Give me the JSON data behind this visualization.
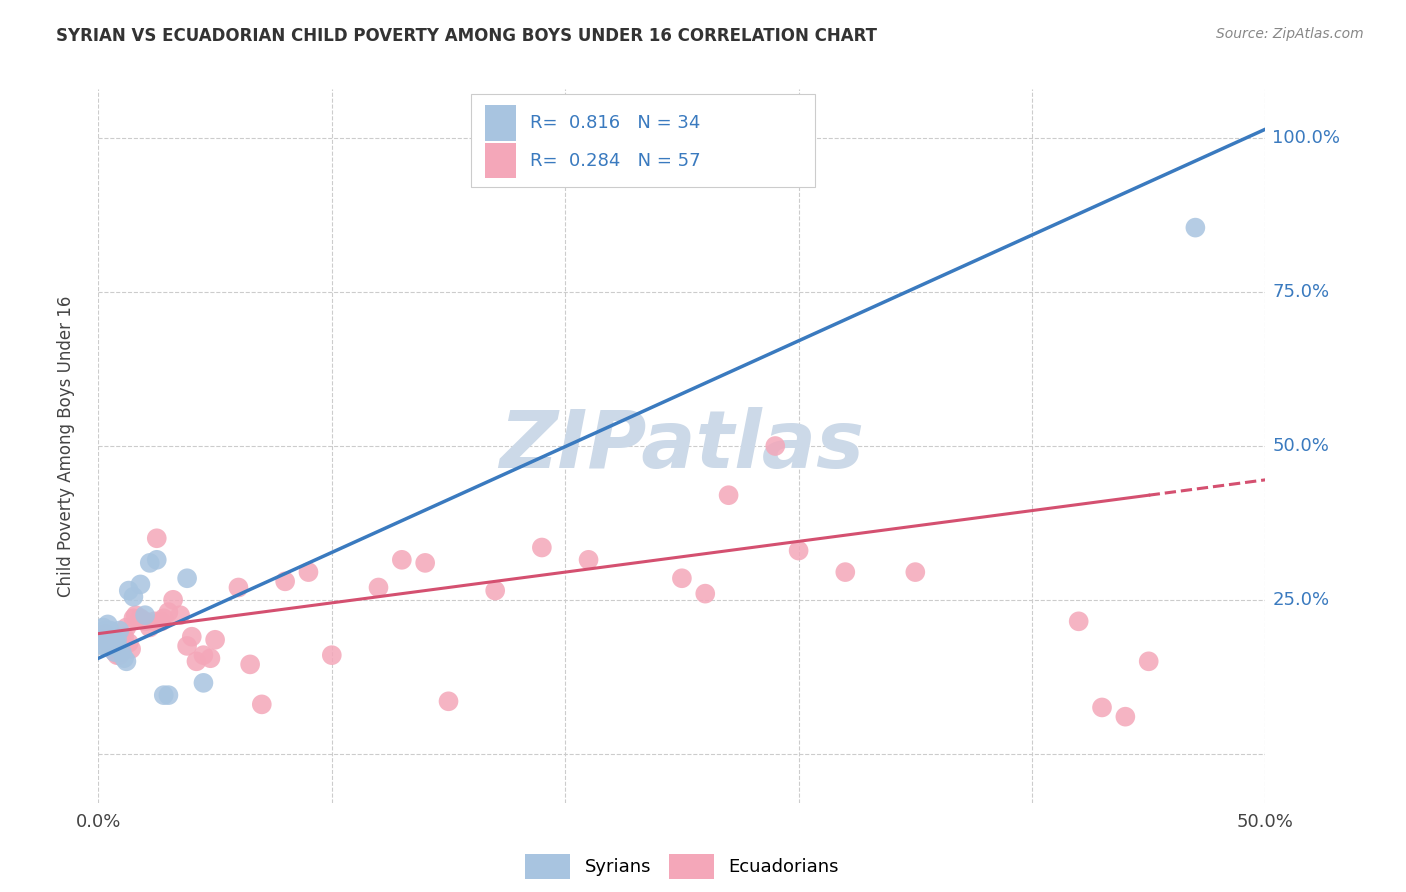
{
  "title": "SYRIAN VS ECUADORIAN CHILD POVERTY AMONG BOYS UNDER 16 CORRELATION CHART",
  "source": "Source: ZipAtlas.com",
  "ylabel": "Child Poverty Among Boys Under 16",
  "xlim": [
    0.0,
    0.5
  ],
  "ylim": [
    -0.08,
    1.08
  ],
  "yticks": [
    0.0,
    0.25,
    0.5,
    0.75,
    1.0
  ],
  "ytick_labels": [
    "",
    "25.0%",
    "50.0%",
    "75.0%",
    "100.0%"
  ],
  "xticks": [
    0.0,
    0.1,
    0.2,
    0.3,
    0.4,
    0.5
  ],
  "xtick_labels": [
    "0.0%",
    "",
    "",
    "",
    "",
    "50.0%"
  ],
  "syrians_R": 0.816,
  "syrians_N": 34,
  "ecuadorians_R": 0.284,
  "ecuadorians_N": 57,
  "syrians_color": "#a8c4e0",
  "ecuadorians_color": "#f4a7b9",
  "trendline_syrians_color": "#3a7abf",
  "trendline_ecuadorians_color": "#d45070",
  "watermark": "ZIPatlas",
  "watermark_color": "#ccd9e8",
  "background_color": "#ffffff",
  "grid_color": "#cccccc",
  "title_color": "#333333",
  "source_color": "#888888",
  "tick_label_color": "#3a7abf",
  "syrians_x": [
    0.001,
    0.001,
    0.002,
    0.002,
    0.002,
    0.003,
    0.003,
    0.003,
    0.004,
    0.004,
    0.005,
    0.005,
    0.005,
    0.006,
    0.006,
    0.007,
    0.007,
    0.008,
    0.008,
    0.009,
    0.01,
    0.011,
    0.012,
    0.013,
    0.015,
    0.018,
    0.02,
    0.022,
    0.025,
    0.028,
    0.03,
    0.038,
    0.045,
    0.47
  ],
  "syrians_y": [
    0.195,
    0.185,
    0.205,
    0.19,
    0.175,
    0.2,
    0.185,
    0.175,
    0.21,
    0.185,
    0.185,
    0.2,
    0.175,
    0.19,
    0.175,
    0.185,
    0.165,
    0.185,
    0.175,
    0.2,
    0.165,
    0.155,
    0.15,
    0.265,
    0.255,
    0.275,
    0.225,
    0.31,
    0.315,
    0.095,
    0.095,
    0.285,
    0.115,
    0.855
  ],
  "ecuadorians_x": [
    0.001,
    0.002,
    0.003,
    0.004,
    0.005,
    0.006,
    0.007,
    0.007,
    0.008,
    0.009,
    0.01,
    0.011,
    0.012,
    0.013,
    0.014,
    0.015,
    0.016,
    0.018,
    0.02,
    0.022,
    0.024,
    0.025,
    0.027,
    0.028,
    0.03,
    0.032,
    0.035,
    0.038,
    0.04,
    0.042,
    0.045,
    0.048,
    0.05,
    0.06,
    0.065,
    0.07,
    0.08,
    0.09,
    0.1,
    0.12,
    0.13,
    0.14,
    0.15,
    0.17,
    0.19,
    0.21,
    0.25,
    0.26,
    0.27,
    0.29,
    0.3,
    0.32,
    0.35,
    0.42,
    0.43,
    0.44,
    0.45
  ],
  "ecuadorians_y": [
    0.185,
    0.185,
    0.195,
    0.19,
    0.185,
    0.175,
    0.175,
    0.165,
    0.16,
    0.16,
    0.185,
    0.19,
    0.205,
    0.18,
    0.17,
    0.22,
    0.225,
    0.22,
    0.215,
    0.205,
    0.215,
    0.35,
    0.215,
    0.22,
    0.23,
    0.25,
    0.225,
    0.175,
    0.19,
    0.15,
    0.16,
    0.155,
    0.185,
    0.27,
    0.145,
    0.08,
    0.28,
    0.295,
    0.16,
    0.27,
    0.315,
    0.31,
    0.085,
    0.265,
    0.335,
    0.315,
    0.285,
    0.26,
    0.42,
    0.5,
    0.33,
    0.295,
    0.295,
    0.215,
    0.075,
    0.06,
    0.15
  ],
  "trendline_syrians_slope": 1.72,
  "trendline_syrians_intercept": 0.155,
  "trendline_ecuadorians_slope": 0.5,
  "trendline_ecuadorians_intercept": 0.195
}
